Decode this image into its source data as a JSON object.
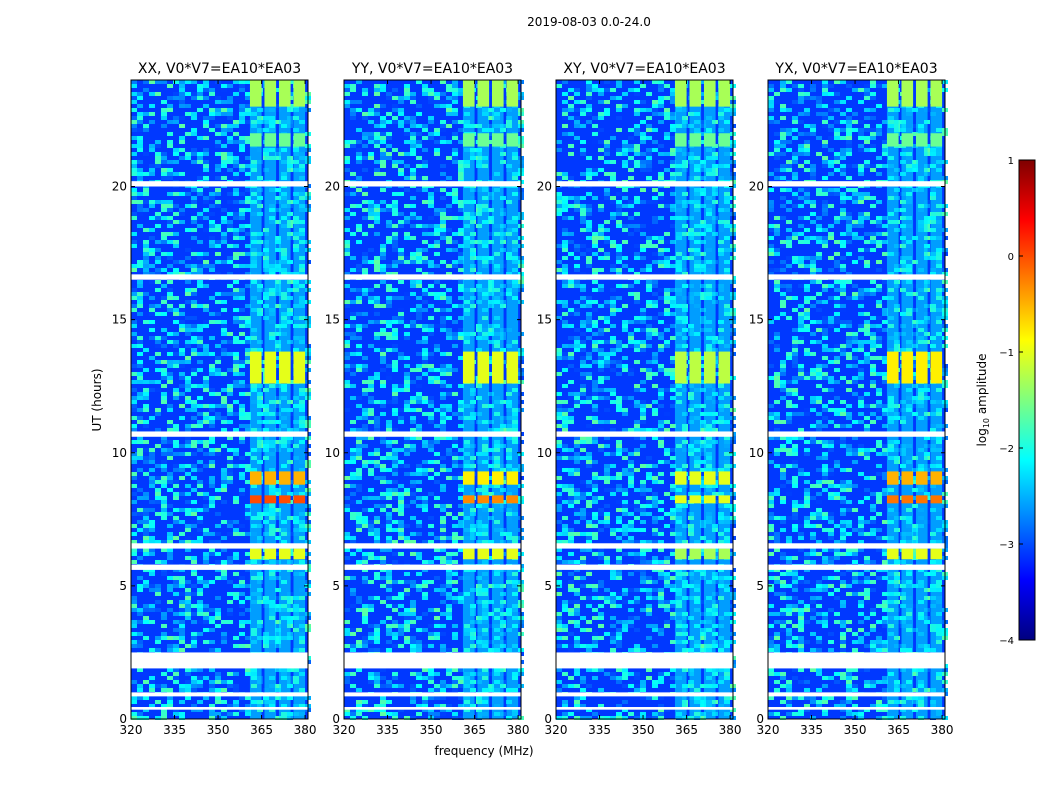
{
  "figure": {
    "suptitle": "2019-08-03 0.0-24.0",
    "xlabel": "frequency (MHz)",
    "ylabel": "UT (hours)",
    "colorbar_label_prefix": "log",
    "colorbar_label_subscript": "10",
    "colorbar_label_suffix": " amplitude",
    "colorbar_ticks": [
      {
        "value": 1,
        "label": "1"
      },
      {
        "value": 0,
        "label": "0"
      },
      {
        "value": -1,
        "label": "−1"
      },
      {
        "value": -2,
        "label": "−2"
      },
      {
        "value": -3,
        "label": "−3"
      },
      {
        "value": -4,
        "label": "−4"
      }
    ],
    "colormap": [
      "#00007f",
      "#0000ff",
      "#007fff",
      "#00ffff",
      "#7fff7f",
      "#ffff00",
      "#ff7f00",
      "#ff0000",
      "#7f0000"
    ]
  },
  "chart_data": [
    {
      "type": "heatmap",
      "title": "XX, V0*V7=EA10*EA03",
      "xlabel": "",
      "ylabel": "UT (hours)",
      "xlim": [
        320,
        381
      ],
      "ylim": [
        0,
        24
      ],
      "xticks": [
        320,
        335,
        350,
        365,
        380
      ],
      "yticks": [
        0,
        5,
        10,
        15,
        20
      ],
      "zlim": [
        -4,
        1
      ],
      "zlabel": "log10 amplitude",
      "background_level": -3.1,
      "flagged_rows": [
        [
          0.85,
          1.0
        ],
        [
          1.9,
          2.5
        ],
        [
          5.6,
          5.8
        ],
        [
          6.4,
          6.6
        ],
        [
          10.6,
          10.8
        ],
        [
          16.5,
          16.7
        ],
        [
          20.0,
          20.2
        ],
        [
          0.35,
          0.45
        ]
      ],
      "rfi_bands": [
        [
          361,
          365
        ],
        [
          366,
          370
        ],
        [
          371,
          375
        ],
        [
          376,
          380
        ]
      ],
      "rfi_events": [
        [
          6.0,
          6.4,
          -1.0
        ],
        [
          8.1,
          8.4,
          0.0
        ],
        [
          8.8,
          9.3,
          -0.5
        ],
        [
          12.6,
          13.8,
          -1.0
        ],
        [
          21.5,
          22.0,
          -1.6
        ],
        [
          23.0,
          24.0,
          -1.3
        ]
      ]
    },
    {
      "type": "heatmap",
      "title": "YY, V0*V7=EA10*EA03",
      "xlabel": "frequency (MHz)",
      "ylabel": "",
      "xlim": [
        320,
        381
      ],
      "ylim": [
        0,
        24
      ],
      "xticks": [
        320,
        335,
        350,
        365,
        380
      ],
      "yticks": [
        0,
        5,
        10,
        15,
        20
      ],
      "zlim": [
        -4,
        1
      ],
      "zlabel": "log10 amplitude",
      "background_level": -3.1,
      "flagged_rows": [
        [
          0.85,
          1.0
        ],
        [
          1.9,
          2.5
        ],
        [
          5.6,
          5.8
        ],
        [
          6.4,
          6.6
        ],
        [
          10.6,
          10.8
        ],
        [
          16.5,
          16.7
        ],
        [
          20.0,
          20.2
        ],
        [
          0.35,
          0.45
        ]
      ],
      "rfi_bands": [
        [
          361,
          365
        ],
        [
          366,
          370
        ],
        [
          371,
          375
        ],
        [
          376,
          380
        ]
      ],
      "rfi_events": [
        [
          6.0,
          6.4,
          -1.0
        ],
        [
          8.1,
          8.4,
          -0.3
        ],
        [
          8.8,
          9.3,
          -0.8
        ],
        [
          12.6,
          13.8,
          -1.0
        ],
        [
          21.5,
          22.0,
          -1.6
        ],
        [
          23.0,
          24.0,
          -1.3
        ]
      ]
    },
    {
      "type": "heatmap",
      "title": "XY, V0*V7=EA10*EA03",
      "xlabel": "",
      "ylabel": "",
      "xlim": [
        320,
        381
      ],
      "ylim": [
        0,
        24
      ],
      "xticks": [
        320,
        335,
        350,
        365,
        380
      ],
      "yticks": [
        0,
        5,
        10,
        15,
        20
      ],
      "zlim": [
        -4,
        1
      ],
      "zlabel": "log10 amplitude",
      "background_level": -3.1,
      "flagged_rows": [
        [
          0.85,
          1.0
        ],
        [
          1.9,
          2.5
        ],
        [
          5.6,
          5.8
        ],
        [
          6.4,
          6.6
        ],
        [
          10.6,
          10.8
        ],
        [
          16.5,
          16.7
        ],
        [
          20.0,
          20.2
        ],
        [
          0.35,
          0.45
        ]
      ],
      "rfi_bands": [
        [
          361,
          365
        ],
        [
          366,
          370
        ],
        [
          371,
          375
        ],
        [
          376,
          380
        ]
      ],
      "rfi_events": [
        [
          6.0,
          6.4,
          -1.3
        ],
        [
          8.1,
          8.4,
          -1.0
        ],
        [
          8.8,
          9.3,
          -1.0
        ],
        [
          12.6,
          13.8,
          -1.2
        ],
        [
          21.5,
          22.0,
          -1.6
        ],
        [
          23.0,
          24.0,
          -1.3
        ]
      ]
    },
    {
      "type": "heatmap",
      "title": "YX, V0*V7=EA10*EA03",
      "xlabel": "",
      "ylabel": "",
      "xlim": [
        320,
        381
      ],
      "ylim": [
        0,
        24
      ],
      "xticks": [
        320,
        335,
        350,
        365,
        380
      ],
      "yticks": [
        0,
        5,
        10,
        15,
        20
      ],
      "zlim": [
        -4,
        1
      ],
      "zlabel": "log10 amplitude",
      "background_level": -3.1,
      "flagged_rows": [
        [
          0.85,
          1.0
        ],
        [
          1.9,
          2.5
        ],
        [
          5.6,
          5.8
        ],
        [
          6.4,
          6.6
        ],
        [
          10.6,
          10.8
        ],
        [
          16.5,
          16.7
        ],
        [
          20.0,
          20.2
        ],
        [
          0.35,
          0.45
        ]
      ],
      "rfi_bands": [
        [
          361,
          365
        ],
        [
          366,
          370
        ],
        [
          371,
          375
        ],
        [
          376,
          380
        ]
      ],
      "rfi_events": [
        [
          6.0,
          6.4,
          -1.0
        ],
        [
          8.1,
          8.4,
          -0.2
        ],
        [
          8.8,
          9.3,
          -0.5
        ],
        [
          12.6,
          13.8,
          -0.8
        ],
        [
          21.5,
          22.0,
          -1.6
        ],
        [
          23.0,
          24.0,
          -1.3
        ]
      ]
    }
  ]
}
